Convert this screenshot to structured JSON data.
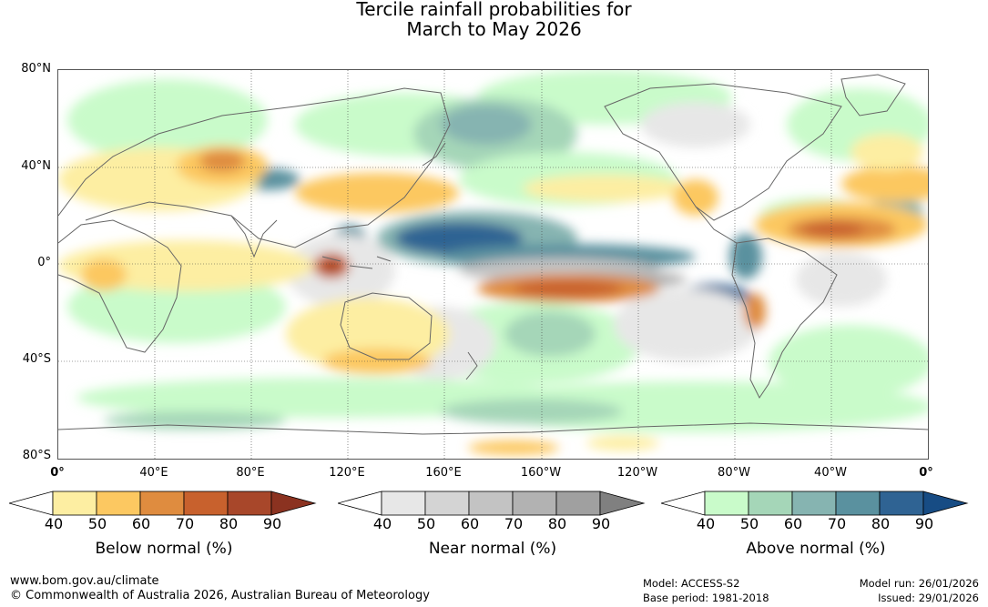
{
  "title": {
    "line1": "Tercile rainfall probabilities for",
    "line2": "March to May 2026"
  },
  "map": {
    "lat_labels": [
      "80°N",
      "40°N",
      "0°",
      "40°S",
      "80°S"
    ],
    "lon_labels": [
      "0°",
      "40°E",
      "80°E",
      "120°E",
      "160°E",
      "160°W",
      "120°W",
      "80°W",
      "40°W",
      "0°"
    ]
  },
  "legends": {
    "below": {
      "title": "Below normal (%)",
      "ticks": [
        "40",
        "50",
        "60",
        "70",
        "80",
        "90"
      ],
      "colors": [
        "#ffffff",
        "#fdeea2",
        "#fcc861",
        "#df8c3f",
        "#c8612d",
        "#a8472a",
        "#8b3220"
      ]
    },
    "near": {
      "title": "Near normal (%)",
      "ticks": [
        "40",
        "50",
        "60",
        "70",
        "80",
        "90"
      ],
      "colors": [
        "#ffffff",
        "#e7e7e7",
        "#d4d4d4",
        "#c3c3c3",
        "#b2b2b2",
        "#a0a0a0",
        "#808080"
      ]
    },
    "above": {
      "title": "Above normal (%)",
      "ticks": [
        "40",
        "50",
        "60",
        "70",
        "80",
        "90"
      ],
      "colors": [
        "#ffffff",
        "#c9fbca",
        "#a5d6b8",
        "#86b4b1",
        "#5a919f",
        "#2f6393",
        "#174c84"
      ]
    }
  },
  "footer": {
    "website": "www.bom.gov.au/climate",
    "copyright": "© Commonwealth of Australia 2026, Australian Bureau of Meteorology",
    "model": "Model: ACCESS-S2",
    "base_period": "Base period: 1981-2018",
    "model_run": "Model run: 26/01/2026",
    "issued": "Issued: 29/01/2026"
  }
}
